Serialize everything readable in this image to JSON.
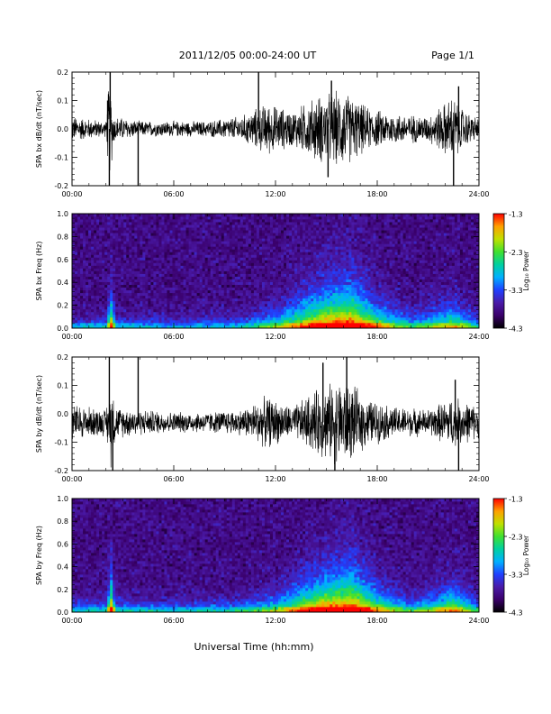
{
  "header": {
    "title": "2011/12/05  00:00-24:00 UT",
    "page": "Page 1/1"
  },
  "xlabel": "Universal Time (hh:mm)",
  "colorbar": {
    "label": "Log₁₀ Power",
    "ticks": [
      "-1.3",
      "-2.3",
      "-3.3",
      "-4.3"
    ],
    "range": [
      -4.3,
      -1.3
    ],
    "colors": [
      "#000000",
      "#3a006a",
      "#4a1aa8",
      "#2040ff",
      "#00b0ff",
      "#00d0a0",
      "#40e030",
      "#c0e000",
      "#ffa000",
      "#ff0000"
    ]
  },
  "chart_data": [
    {
      "type": "line",
      "ylabel": "SPA bx dB/dt (nT/sec)",
      "xlim": [
        0,
        24
      ],
      "ylim": [
        -0.2,
        0.2
      ],
      "xticks": [
        "00:00",
        "06:00",
        "12:00",
        "18:00",
        "24:00"
      ],
      "yticks": [
        "0.2",
        "0.1",
        "0.0",
        "-0.1",
        "-0.2"
      ],
      "baseline": 0.0,
      "envelope": [
        {
          "t": 0,
          "amp": 0.05
        },
        {
          "t": 2,
          "amp": 0.03
        },
        {
          "t": 2.2,
          "amp": 0.2
        },
        {
          "t": 2.5,
          "amp": 0.05
        },
        {
          "t": 4,
          "amp": 0.03
        },
        {
          "t": 6,
          "amp": 0.03
        },
        {
          "t": 8,
          "amp": 0.03
        },
        {
          "t": 10,
          "amp": 0.05
        },
        {
          "t": 11.5,
          "amp": 0.1
        },
        {
          "t": 13,
          "amp": 0.07
        },
        {
          "t": 14.5,
          "amp": 0.13
        },
        {
          "t": 16,
          "amp": 0.15
        },
        {
          "t": 17.5,
          "amp": 0.08
        },
        {
          "t": 19,
          "amp": 0.06
        },
        {
          "t": 21,
          "amp": 0.05
        },
        {
          "t": 22.5,
          "amp": 0.13
        },
        {
          "t": 23.2,
          "amp": 0.07
        },
        {
          "t": 24,
          "amp": 0.04
        }
      ],
      "spikes": [
        {
          "t": 2.2,
          "v": -0.2
        },
        {
          "t": 2.25,
          "v": 0.2
        },
        {
          "t": 2.1,
          "v": 0.1
        },
        {
          "t": 3.9,
          "v": -0.2
        },
        {
          "t": 11.0,
          "v": 0.2
        },
        {
          "t": 15.1,
          "v": -0.17
        },
        {
          "t": 15.3,
          "v": 0.17
        },
        {
          "t": 22.5,
          "v": -0.2
        },
        {
          "t": 22.8,
          "v": 0.15
        }
      ]
    },
    {
      "type": "heatmap",
      "ylabel": "SPA bx Freq (Hz)",
      "xlim": [
        0,
        24
      ],
      "ylim": [
        0,
        1
      ],
      "xticks": [
        "00:00",
        "06:00",
        "12:00",
        "18:00",
        "24:00"
      ],
      "yticks": [
        "1.0",
        "0.8",
        "0.6",
        "0.4",
        "0.2",
        "0.0"
      ],
      "value_range": [
        -4.3,
        -1.3
      ],
      "activity": [
        {
          "t": 0,
          "a": 0.3
        },
        {
          "t": 2,
          "a": 0.35
        },
        {
          "t": 2.3,
          "a": 0.85
        },
        {
          "t": 2.6,
          "a": 0.35
        },
        {
          "t": 6,
          "a": 0.3
        },
        {
          "t": 10,
          "a": 0.35
        },
        {
          "t": 12,
          "a": 0.55
        },
        {
          "t": 13.5,
          "a": 0.75
        },
        {
          "t": 15,
          "a": 0.9
        },
        {
          "t": 16.5,
          "a": 0.95
        },
        {
          "t": 18,
          "a": 0.7
        },
        {
          "t": 20,
          "a": 0.45
        },
        {
          "t": 22.5,
          "a": 0.65
        },
        {
          "t": 24,
          "a": 0.4
        }
      ]
    },
    {
      "type": "line",
      "ylabel": "SPA by dB/dt (nT/sec)",
      "xlim": [
        0,
        24
      ],
      "ylim": [
        -0.2,
        0.2
      ],
      "xticks": [
        "00:00",
        "06:00",
        "12:00",
        "18:00",
        "24:00"
      ],
      "yticks": [
        "0.2",
        "0.1",
        "0.0",
        "-0.1",
        "-0.2"
      ],
      "baseline": -0.03,
      "envelope": [
        {
          "t": 0,
          "amp": 0.07
        },
        {
          "t": 2,
          "amp": 0.05
        },
        {
          "t": 2.3,
          "amp": 0.17
        },
        {
          "t": 2.6,
          "amp": 0.06
        },
        {
          "t": 4,
          "amp": 0.05
        },
        {
          "t": 6,
          "amp": 0.04
        },
        {
          "t": 8,
          "amp": 0.04
        },
        {
          "t": 10,
          "amp": 0.05
        },
        {
          "t": 11.5,
          "amp": 0.1
        },
        {
          "t": 13,
          "amp": 0.06
        },
        {
          "t": 14.5,
          "amp": 0.13
        },
        {
          "t": 16,
          "amp": 0.17
        },
        {
          "t": 17.5,
          "amp": 0.09
        },
        {
          "t": 19,
          "amp": 0.06
        },
        {
          "t": 21,
          "amp": 0.05
        },
        {
          "t": 22.5,
          "amp": 0.1
        },
        {
          "t": 24,
          "amp": 0.06
        }
      ],
      "spikes": [
        {
          "t": 2.2,
          "v": 0.2
        },
        {
          "t": 2.4,
          "v": -0.2
        },
        {
          "t": 3.9,
          "v": 0.2
        },
        {
          "t": 14.8,
          "v": 0.18
        },
        {
          "t": 15.5,
          "v": -0.2
        },
        {
          "t": 16.2,
          "v": 0.2
        },
        {
          "t": 22.8,
          "v": -0.2
        },
        {
          "t": 22.6,
          "v": 0.12
        }
      ]
    },
    {
      "type": "heatmap",
      "ylabel": "SPA by Freq (Hz)",
      "xlim": [
        0,
        24
      ],
      "ylim": [
        0,
        1
      ],
      "xticks": [
        "00:00",
        "06:00",
        "12:00",
        "18:00",
        "24:00"
      ],
      "yticks": [
        "1.0",
        "0.8",
        "0.6",
        "0.4",
        "0.2",
        "0.0"
      ],
      "value_range": [
        -4.3,
        -1.3
      ],
      "activity": [
        {
          "t": 0,
          "a": 0.35
        },
        {
          "t": 2,
          "a": 0.4
        },
        {
          "t": 2.3,
          "a": 0.9
        },
        {
          "t": 2.6,
          "a": 0.4
        },
        {
          "t": 6,
          "a": 0.35
        },
        {
          "t": 10,
          "a": 0.4
        },
        {
          "t": 12,
          "a": 0.55
        },
        {
          "t": 13.5,
          "a": 0.75
        },
        {
          "t": 15,
          "a": 0.9
        },
        {
          "t": 16.5,
          "a": 0.95
        },
        {
          "t": 18,
          "a": 0.7
        },
        {
          "t": 20,
          "a": 0.45
        },
        {
          "t": 22.5,
          "a": 0.7
        },
        {
          "t": 24,
          "a": 0.45
        }
      ]
    }
  ]
}
